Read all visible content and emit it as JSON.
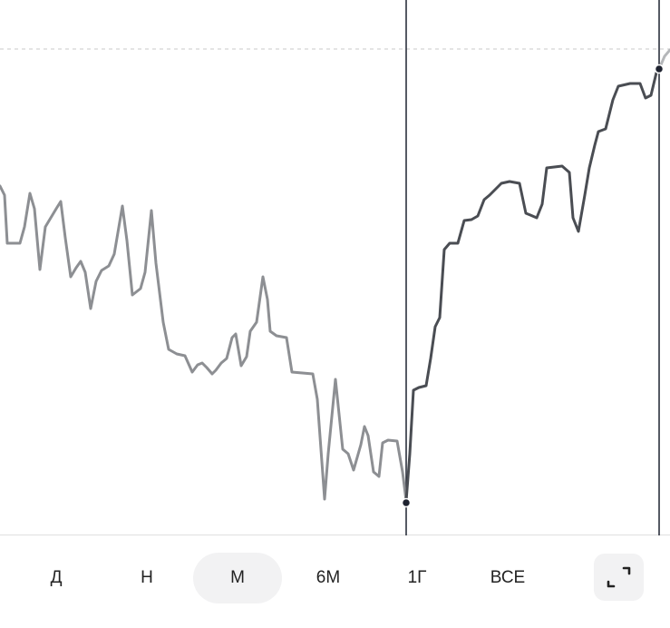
{
  "tabs": [
    "Д",
    "Н",
    "М",
    "6М",
    "1Г",
    "ВСЕ"
  ],
  "selected_tab": 2
}
